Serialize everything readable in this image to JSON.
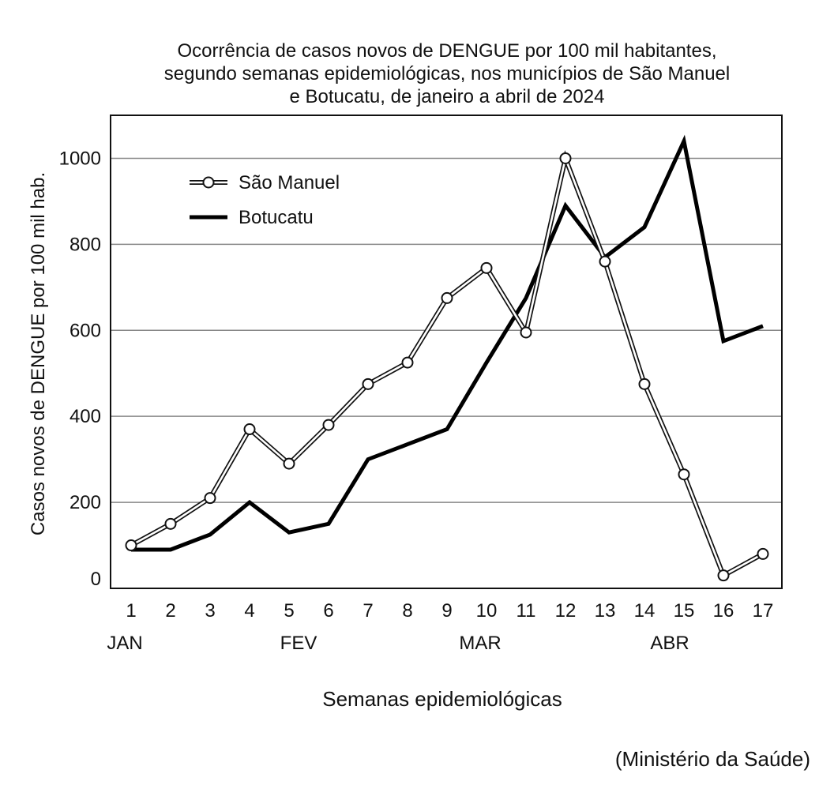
{
  "chart_data": {
    "type": "line",
    "title_lines": [
      "Ocorrência de casos novos de DENGUE por 100 mil habitantes,",
      "segundo semanas epidemiológicas, nos municípios de São Manuel",
      "e Botucatu, de janeiro a abril de 2024"
    ],
    "xlabel": "Semanas epidemiológicas",
    "ylabel": "Casos novos de DENGUE por 100 mil hab.",
    "x": [
      1,
      2,
      3,
      4,
      5,
      6,
      7,
      8,
      9,
      10,
      11,
      12,
      13,
      14,
      15,
      16,
      17
    ],
    "x_tick_labels": [
      "1",
      "2",
      "3",
      "4",
      "5",
      "6",
      "7",
      "8",
      "9",
      "10",
      "11",
      "12",
      "13",
      "14",
      "15",
      "16",
      "17"
    ],
    "month_labels": [
      {
        "label": "JAN",
        "week": 1
      },
      {
        "label": "FEV",
        "week": 5.4
      },
      {
        "label": "MAR",
        "week": 10
      },
      {
        "label": "ABR",
        "week": 14.8
      }
    ],
    "ylim": [
      0,
      1100
    ],
    "y_ticks": [
      0,
      200,
      400,
      600,
      800,
      1000
    ],
    "grid": "horizontal",
    "legend_position": "top-left",
    "series": [
      {
        "name": "São Manuel",
        "style": "hollow-line-with-circles",
        "color": "#111111",
        "values": [
          100,
          150,
          210,
          370,
          290,
          380,
          475,
          525,
          675,
          745,
          595,
          1000,
          760,
          475,
          265,
          30,
          80
        ]
      },
      {
        "name": "Botucatu",
        "style": "thick-line",
        "color": "#000000",
        "values": [
          90,
          90,
          125,
          200,
          130,
          150,
          300,
          335,
          370,
          525,
          675,
          890,
          770,
          840,
          1040,
          575,
          610
        ]
      }
    ],
    "source": "(Ministério da Saúde)"
  }
}
